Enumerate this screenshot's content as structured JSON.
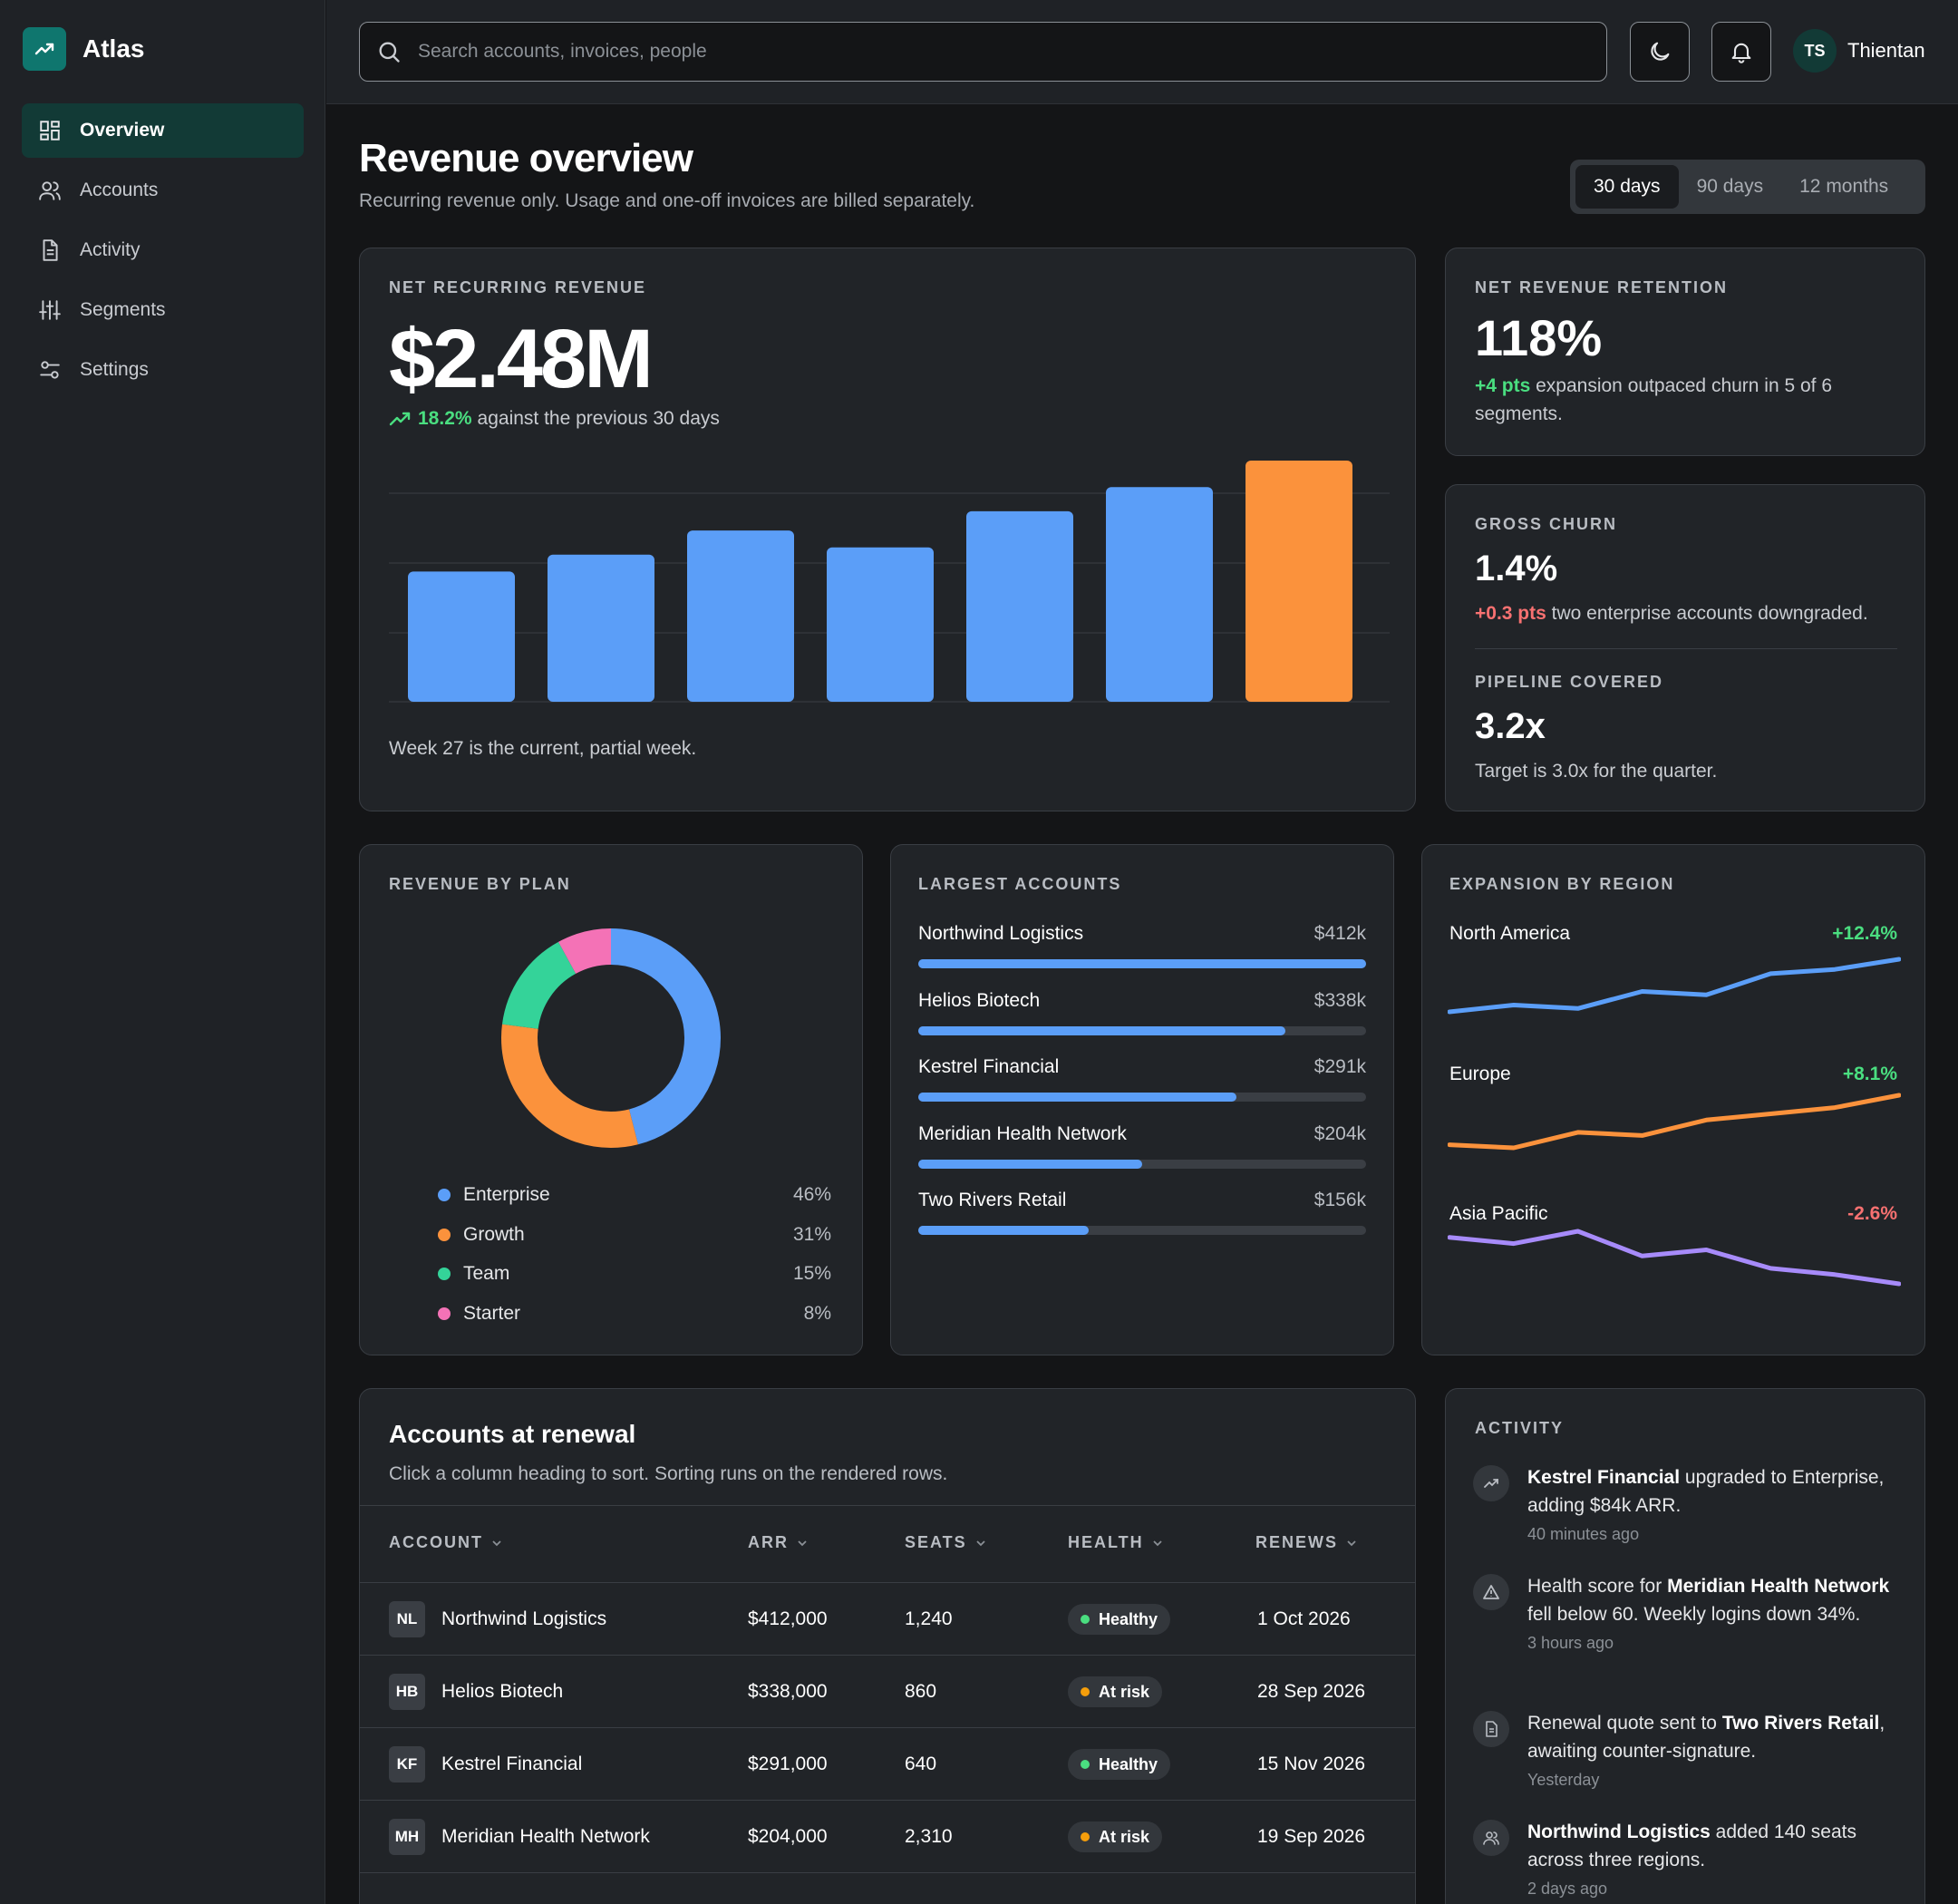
{
  "app": {
    "name": "Atlas"
  },
  "nav": {
    "overview": "Overview",
    "accounts": "Accounts",
    "activity": "Activity",
    "segments": "Segments",
    "settings": "Settings"
  },
  "search": {
    "placeholder": "Search accounts, invoices, people"
  },
  "user": {
    "initials": "TS",
    "name": "Thientan"
  },
  "header": {
    "title": "Revenue overview",
    "subtitle": "Recurring revenue only. Usage and one-off invoices are billed separately.",
    "ranges": [
      "30 days",
      "90 days",
      "12 months"
    ],
    "active_range": "30 days"
  },
  "nrr_card": {
    "label": "NET RECURRING REVENUE",
    "value": "$2.48M",
    "change": "18.2%",
    "change_text": "against the previous 30 days",
    "note": "Week 27 is the current, partial week."
  },
  "chart_data": {
    "type": "bar",
    "values": [
      0.54,
      0.61,
      0.71,
      0.64,
      0.79,
      0.89,
      1.0
    ],
    "highlight_index": 6,
    "colors": {
      "bar": "#5b9ef8",
      "highlight": "#fb923c"
    }
  },
  "retention": {
    "label": "NET REVENUE RETENTION",
    "value": "118%",
    "delta": "+4 pts",
    "text": "expansion outpaced churn in 5 of 6 segments."
  },
  "churn": {
    "label": "GROSS CHURN",
    "value": "1.4%",
    "delta": "+0.3 pts",
    "text": "two enterprise accounts downgraded."
  },
  "pipeline": {
    "label": "PIPELINE COVERED",
    "value": "3.2x",
    "text": "Target is 3.0x for the quarter."
  },
  "plan": {
    "label": "REVENUE BY PLAN",
    "items": [
      {
        "name": "Enterprise",
        "pct": "46%",
        "value": 46,
        "color": "#5b9ef8"
      },
      {
        "name": "Growth",
        "pct": "31%",
        "value": 31,
        "color": "#fb923c"
      },
      {
        "name": "Team",
        "pct": "15%",
        "value": 15,
        "color": "#34d399"
      },
      {
        "name": "Starter",
        "pct": "8%",
        "value": 8,
        "color": "#f472b6"
      }
    ]
  },
  "largest": {
    "label": "LARGEST ACCOUNTS",
    "items": [
      {
        "name": "Northwind Logistics",
        "value": "$412k",
        "ratio": 1.0
      },
      {
        "name": "Helios Biotech",
        "value": "$338k",
        "ratio": 0.82
      },
      {
        "name": "Kestrel Financial",
        "value": "$291k",
        "ratio": 0.71
      },
      {
        "name": "Meridian Health Network",
        "value": "$204k",
        "ratio": 0.5
      },
      {
        "name": "Two Rivers Retail",
        "value": "$156k",
        "ratio": 0.38
      }
    ]
  },
  "region": {
    "label": "EXPANSION BY REGION",
    "items": [
      {
        "name": "North America",
        "change": "+12.4%",
        "trend": "up",
        "color": "#5b9ef8",
        "points": [
          10,
          18,
          14,
          34,
          30,
          55,
          60,
          72
        ]
      },
      {
        "name": "Europe",
        "change": "+8.1%",
        "trend": "up",
        "color": "#fb923c",
        "points": [
          12,
          10,
          20,
          18,
          28,
          32,
          36,
          44
        ]
      },
      {
        "name": "Asia Pacific",
        "change": "-2.6%",
        "trend": "down",
        "color": "#a78bfa",
        "points": [
          48,
          44,
          52,
          36,
          40,
          28,
          24,
          18
        ]
      }
    ]
  },
  "renewals": {
    "title": "Accounts at renewal",
    "subtitle": "Click a column heading to sort. Sorting runs on the rendered rows.",
    "columns": [
      "ACCOUNT",
      "ARR",
      "SEATS",
      "HEALTH",
      "RENEWS"
    ],
    "rows": [
      {
        "initials": "NL",
        "account": "Northwind Logistics",
        "arr": "$412,000",
        "seats": "1,240",
        "health": "Healthy",
        "health_color": "#4ade80",
        "renews": "1 Oct 2026"
      },
      {
        "initials": "HB",
        "account": "Helios Biotech",
        "arr": "$338,000",
        "seats": "860",
        "health": "At risk",
        "health_color": "#f59e0b",
        "renews": "28 Sep 2026"
      },
      {
        "initials": "KF",
        "account": "Kestrel Financial",
        "arr": "$291,000",
        "seats": "640",
        "health": "Healthy",
        "health_color": "#4ade80",
        "renews": "15 Nov 2026"
      },
      {
        "initials": "MH",
        "account": "Meridian Health Network",
        "arr": "$204,000",
        "seats": "2,310",
        "health": "At risk",
        "health_color": "#f59e0b",
        "renews": "19 Sep 2026"
      }
    ]
  },
  "activity": {
    "label": "ACTIVITY",
    "items": [
      {
        "icon": "trend-up-icon",
        "pre": "",
        "bold": "Kestrel Financial",
        "post": " upgraded to Enterprise, adding $84k ARR.",
        "time": "40 minutes ago"
      },
      {
        "icon": "warning-icon",
        "pre": "Health score for ",
        "bold": "Meridian Health Network",
        "post": " fell below 60. Weekly logins down 34%.",
        "time": "3 hours ago"
      },
      {
        "icon": "document-icon",
        "pre": "Renewal quote sent to ",
        "bold": "Two Rivers Retail",
        "post": ", awaiting counter-signature.",
        "time": "Yesterday"
      },
      {
        "icon": "users-icon",
        "pre": "",
        "bold": "Northwind Logistics",
        "post": " added 140 seats across three regions.",
        "time": "2 days ago"
      }
    ]
  }
}
